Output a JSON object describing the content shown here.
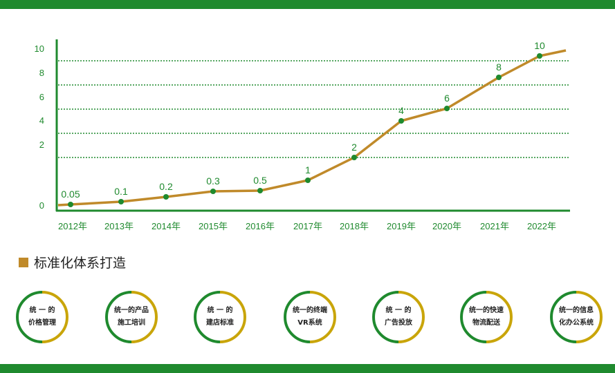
{
  "colors": {
    "green": "#1f8a2e",
    "gold": "#c08a2a",
    "yellow": "#c9a50a",
    "point": "#1f8a2e"
  },
  "chart_data": {
    "type": "line",
    "categories": [
      "2012年",
      "2013年",
      "2014年",
      "2015年",
      "2016年",
      "2017年",
      "2018年",
      "2019年",
      "2020年",
      "2021年",
      "2022年"
    ],
    "values": [
      0.05,
      0.1,
      0.2,
      0.3,
      0.5,
      1,
      2,
      4,
      6,
      8,
      10
    ],
    "data_labels": [
      "0.05",
      "0.1",
      "0.2",
      "0.3",
      "0.5",
      "1",
      "2",
      "4",
      "6",
      "8",
      "10"
    ],
    "yticks": [
      "0",
      "2",
      "4",
      "6",
      "8",
      "10"
    ],
    "ylim": [
      0,
      10
    ],
    "grid": "dotted horizontal",
    "title": "",
    "xlabel": "",
    "ylabel": ""
  },
  "section": {
    "title": "标准化体系打造"
  },
  "circles": [
    {
      "line1": "统 一 的",
      "line2": "价格管理"
    },
    {
      "line1": "统一的产品",
      "line2": "施工培训"
    },
    {
      "line1": "统 一 的",
      "line2": "建店标准"
    },
    {
      "line1": "统一的终端",
      "line2": "VR系统"
    },
    {
      "line1": "统 一 的",
      "line2": "广告投放"
    },
    {
      "line1": "统一的快速",
      "line2": "物流配送"
    },
    {
      "line1": "统一的信息",
      "line2": "化办公系统"
    }
  ]
}
